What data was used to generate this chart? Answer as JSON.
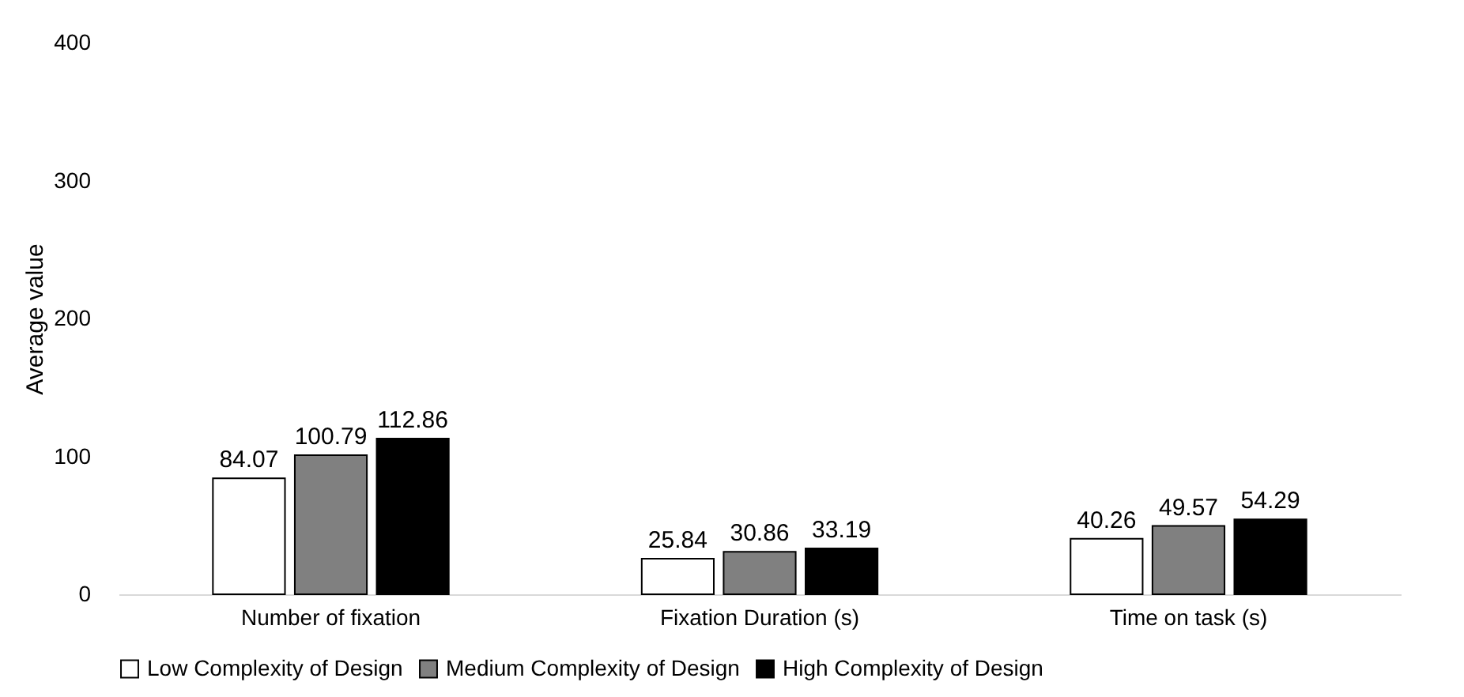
{
  "chart_data": {
    "type": "bar",
    "ylabel": "Average value",
    "categories": [
      "Number of fixation",
      "Fixation Duration (s)",
      "Time on task (s)"
    ],
    "series": [
      {
        "name": "Low Complexity of Design",
        "color": "#ffffff",
        "values": [
          84.07,
          25.84,
          40.26
        ]
      },
      {
        "name": "Medium Complexity of Design",
        "color": "#808080",
        "values": [
          100.79,
          30.86,
          49.57
        ]
      },
      {
        "name": "High Complexity of Design",
        "color": "#000000",
        "values": [
          112.86,
          33.19,
          54.29
        ]
      }
    ],
    "ylim": [
      0,
      400
    ],
    "yticks": [
      0,
      100,
      200,
      300,
      400
    ],
    "data_labels": true,
    "legend": "bottom",
    "grid": false
  }
}
